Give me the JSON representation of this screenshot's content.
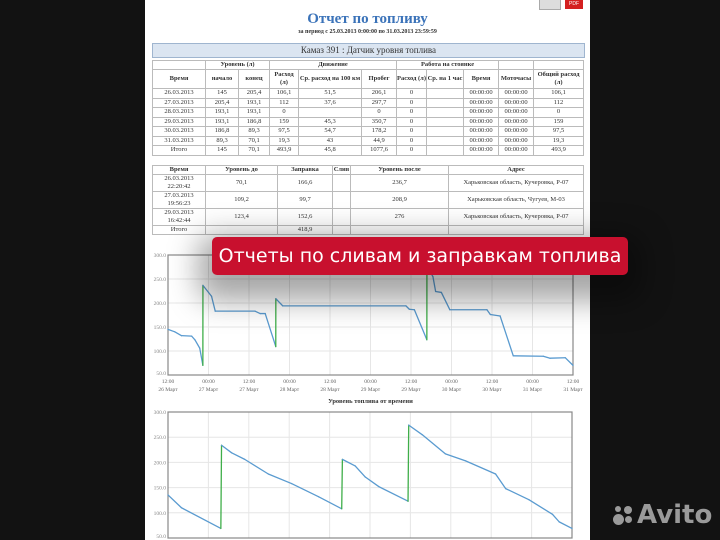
{
  "header": {
    "title": "Отчет по топливу",
    "period": "за период с 25.03.2013 0:00:00 по 31.03.2013 23:59:59",
    "pdf_label": "PDF"
  },
  "vehicle_bar": "Камаз 391 : Датчик уровня топлива",
  "summary_table": {
    "group_headers": [
      "Уровень (л)",
      "Движение",
      "Работа на стоянке"
    ],
    "columns": [
      "Время",
      "начало",
      "конец",
      "Расход (л)",
      "Ср. расход на 100 км",
      "Пробег",
      "Расход (л)",
      "Ср. на 1 час",
      "Время",
      "Моточасы",
      "Общий расход (л)"
    ],
    "rows": [
      [
        "26.03.2013",
        "145",
        "205,4",
        "106,1",
        "51,5",
        "206,1",
        "0",
        "",
        "00:00:00",
        "00:00:00",
        "106,1"
      ],
      [
        "27.03.2013",
        "205,4",
        "193,1",
        "112",
        "37,6",
        "297,7",
        "0",
        "",
        "00:00:00",
        "00:00:00",
        "112"
      ],
      [
        "28.03.2013",
        "193,1",
        "193,1",
        "0",
        "",
        "0",
        "0",
        "",
        "00:00:00",
        "00:00:00",
        "0"
      ],
      [
        "29.03.2013",
        "193,1",
        "186,8",
        "159",
        "45,3",
        "350,7",
        "0",
        "",
        "00:00:00",
        "00:00:00",
        "159"
      ],
      [
        "30.03.2013",
        "186,8",
        "89,3",
        "97,5",
        "54,7",
        "178,2",
        "0",
        "",
        "00:00:00",
        "00:00:00",
        "97,5"
      ],
      [
        "31.03.2013",
        "89,3",
        "70,1",
        "19,3",
        "43",
        "44,9",
        "0",
        "",
        "00:00:00",
        "00:00:00",
        "19,3"
      ],
      [
        "Итого",
        "145",
        "70,1",
        "493,9",
        "45,8",
        "1077,6",
        "0",
        "",
        "00:00:00",
        "00:00:00",
        "493,9"
      ]
    ]
  },
  "refuel_table": {
    "columns": [
      "Время",
      "Уровень до",
      "Заправка",
      "Слив",
      "Уровень после",
      "Адрес"
    ],
    "rows": [
      [
        "26.03.2013 22:20:42",
        "70,1",
        "166,6",
        "",
        "236,7",
        "Харьковская область, Кучеровка, Р-07"
      ],
      [
        "27.03.2013 19:56:23",
        "109,2",
        "99,7",
        "",
        "208,9",
        "Харьковская область, Чугуев, М-03"
      ],
      [
        "29.03.2013 16:42:44",
        "123,4",
        "152,6",
        "",
        "276",
        "Харьковская область, Кучеровка, Р-07"
      ]
    ],
    "total": [
      "Итого",
      "",
      "418,9",
      "",
      "",
      ""
    ]
  },
  "banner": "Отчеты по сливам и заправкам топлива",
  "watermark": "Avito",
  "chart_data": [
    {
      "type": "line",
      "title": "",
      "xlabel": "Уровень топлива от времени",
      "ylabel": "",
      "ylim": [
        50,
        300
      ],
      "yticks": [
        "300.0",
        "250.0",
        "200.0",
        "150.0",
        "100.0",
        "50.0"
      ],
      "xlim": [
        "2013-03-26T12:00",
        "2013-03-31T12:00"
      ],
      "xticks": [
        [
          "12:00",
          "26 Март"
        ],
        [
          "00:00",
          "27 Март"
        ],
        [
          "12:00",
          "27 Март"
        ],
        [
          "00:00",
          "28 Март"
        ],
        [
          "12:00",
          "28 Март"
        ],
        [
          "00:00",
          "29 Март"
        ],
        [
          "12:00",
          "29 Март"
        ],
        [
          "00:00",
          "30 Март"
        ],
        [
          "12:00",
          "30 Март"
        ],
        [
          "00:00",
          "31 Март"
        ],
        [
          "12:00",
          "31 Март"
        ]
      ],
      "grid": true,
      "colors": {
        "level": "#5a9bd0",
        "refuel": "#3fae49"
      },
      "points": [
        [
          "2013-03-26T12:00",
          145
        ],
        [
          "2013-03-26T14:00",
          140
        ],
        [
          "2013-03-26T16:00",
          132
        ],
        [
          "2013-03-26T19:00",
          131
        ],
        [
          "2013-03-26T20:00",
          123
        ],
        [
          "2013-03-26T21:24",
          106
        ],
        [
          "2013-03-26T22:20",
          70.1
        ],
        [
          "2013-03-26T22:21",
          236.7
        ],
        [
          "2013-03-27T00:54",
          214
        ],
        [
          "2013-03-27T02:00",
          183
        ],
        [
          "2013-03-27T13:48",
          183
        ],
        [
          "2013-03-27T15:18",
          178
        ],
        [
          "2013-03-27T16:48",
          178
        ],
        [
          "2013-03-27T19:56",
          109.2
        ],
        [
          "2013-03-27T19:57",
          208.9
        ],
        [
          "2013-03-27T22:00",
          194
        ],
        [
          "2013-03-29T10:30",
          194
        ],
        [
          "2013-03-29T11:30",
          187
        ],
        [
          "2013-03-29T13:00",
          186
        ],
        [
          "2013-03-29T16:42",
          123.4
        ],
        [
          "2013-03-29T16:43",
          276
        ],
        [
          "2013-03-29T18:30",
          255
        ],
        [
          "2013-03-29T19:18",
          224
        ],
        [
          "2013-03-29T21:00",
          222
        ],
        [
          "2013-03-29T23:30",
          186
        ],
        [
          "2013-03-30T10:30",
          186
        ],
        [
          "2013-03-30T11:30",
          176
        ],
        [
          "2013-03-30T14:24",
          173
        ],
        [
          "2013-03-30T18:18",
          90
        ],
        [
          "2013-03-31T03:12",
          89
        ],
        [
          "2013-03-31T05:12",
          85
        ],
        [
          "2013-03-31T09:42",
          86
        ],
        [
          "2013-03-31T12:00",
          70.1
        ]
      ]
    },
    {
      "type": "line",
      "title": "",
      "xlabel": "",
      "ylabel": "",
      "ylim": [
        50,
        300
      ],
      "yticks": [
        "300.0",
        "250.0",
        "200.0",
        "150.0",
        "100.0",
        "50.0"
      ],
      "xlim": [
        "2013-03-26T12:00",
        "2013-03-31T12:00"
      ],
      "xticks": [],
      "grid": true,
      "colors": {
        "level": "#5a9bd0",
        "refuel": "#3fae49"
      },
      "points": [
        [
          "2013-03-26T12:00",
          135.5
        ],
        [
          "2013-03-26T16:00",
          110
        ],
        [
          "2013-03-27T03:42",
          69
        ],
        [
          "2013-03-27T03:54",
          234
        ],
        [
          "2013-03-27T06:54",
          219
        ],
        [
          "2013-03-27T10:48",
          206
        ],
        [
          "2013-03-27T17:48",
          177
        ],
        [
          "2013-03-28T00:42",
          158
        ],
        [
          "2013-03-28T08:42",
          132
        ],
        [
          "2013-03-28T15:36",
          108
        ],
        [
          "2013-03-28T15:48",
          206
        ],
        [
          "2013-03-28T19:36",
          193
        ],
        [
          "2013-03-28T22:36",
          171
        ],
        [
          "2013-03-29T02:36",
          152
        ],
        [
          "2013-03-29T11:18",
          123
        ],
        [
          "2013-03-29T11:30",
          274
        ],
        [
          "2013-03-29T15:30",
          255
        ],
        [
          "2013-03-29T22:24",
          217
        ],
        [
          "2013-03-30T04:24",
          203
        ],
        [
          "2013-03-30T13:18",
          177
        ],
        [
          "2013-03-30T16:18",
          148
        ],
        [
          "2013-03-30T23:12",
          126
        ],
        [
          "2013-03-31T06:12",
          97
        ],
        [
          "2013-03-31T08:12",
          82
        ],
        [
          "2013-03-31T12:00",
          69
        ]
      ]
    }
  ]
}
